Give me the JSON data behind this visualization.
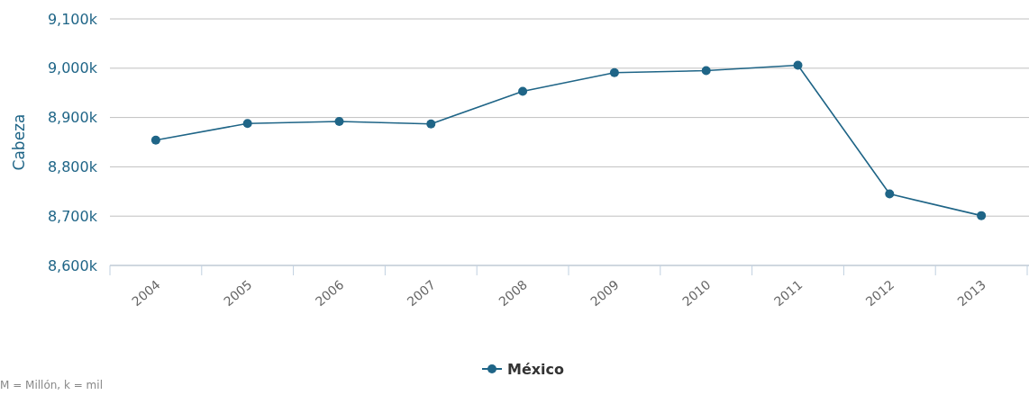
{
  "chart_data": {
    "type": "line",
    "ylabel": "Cabeza",
    "categories": [
      "2004",
      "2005",
      "2006",
      "2007",
      "2008",
      "2009",
      "2010",
      "2011",
      "2012",
      "2013"
    ],
    "series": [
      {
        "name": "México",
        "color": "#1f6587",
        "values": [
          8854,
          8888,
          8892,
          8887,
          8953,
          8991,
          8995,
          9006,
          8745,
          8701
        ]
      }
    ],
    "ylim": [
      8600,
      9100
    ],
    "yticks": [
      {
        "value": 8600,
        "label": "8,600k"
      },
      {
        "value": 8700,
        "label": "8,700k"
      },
      {
        "value": 8800,
        "label": "8,800k"
      },
      {
        "value": 8900,
        "label": "8,900k"
      },
      {
        "value": 9000,
        "label": "9,000k"
      },
      {
        "value": 9100,
        "label": "9,100k"
      }
    ],
    "grid": "y",
    "legend": "bottom",
    "marker": "circle",
    "annotations": [
      "M = Millón, k = mil"
    ]
  }
}
